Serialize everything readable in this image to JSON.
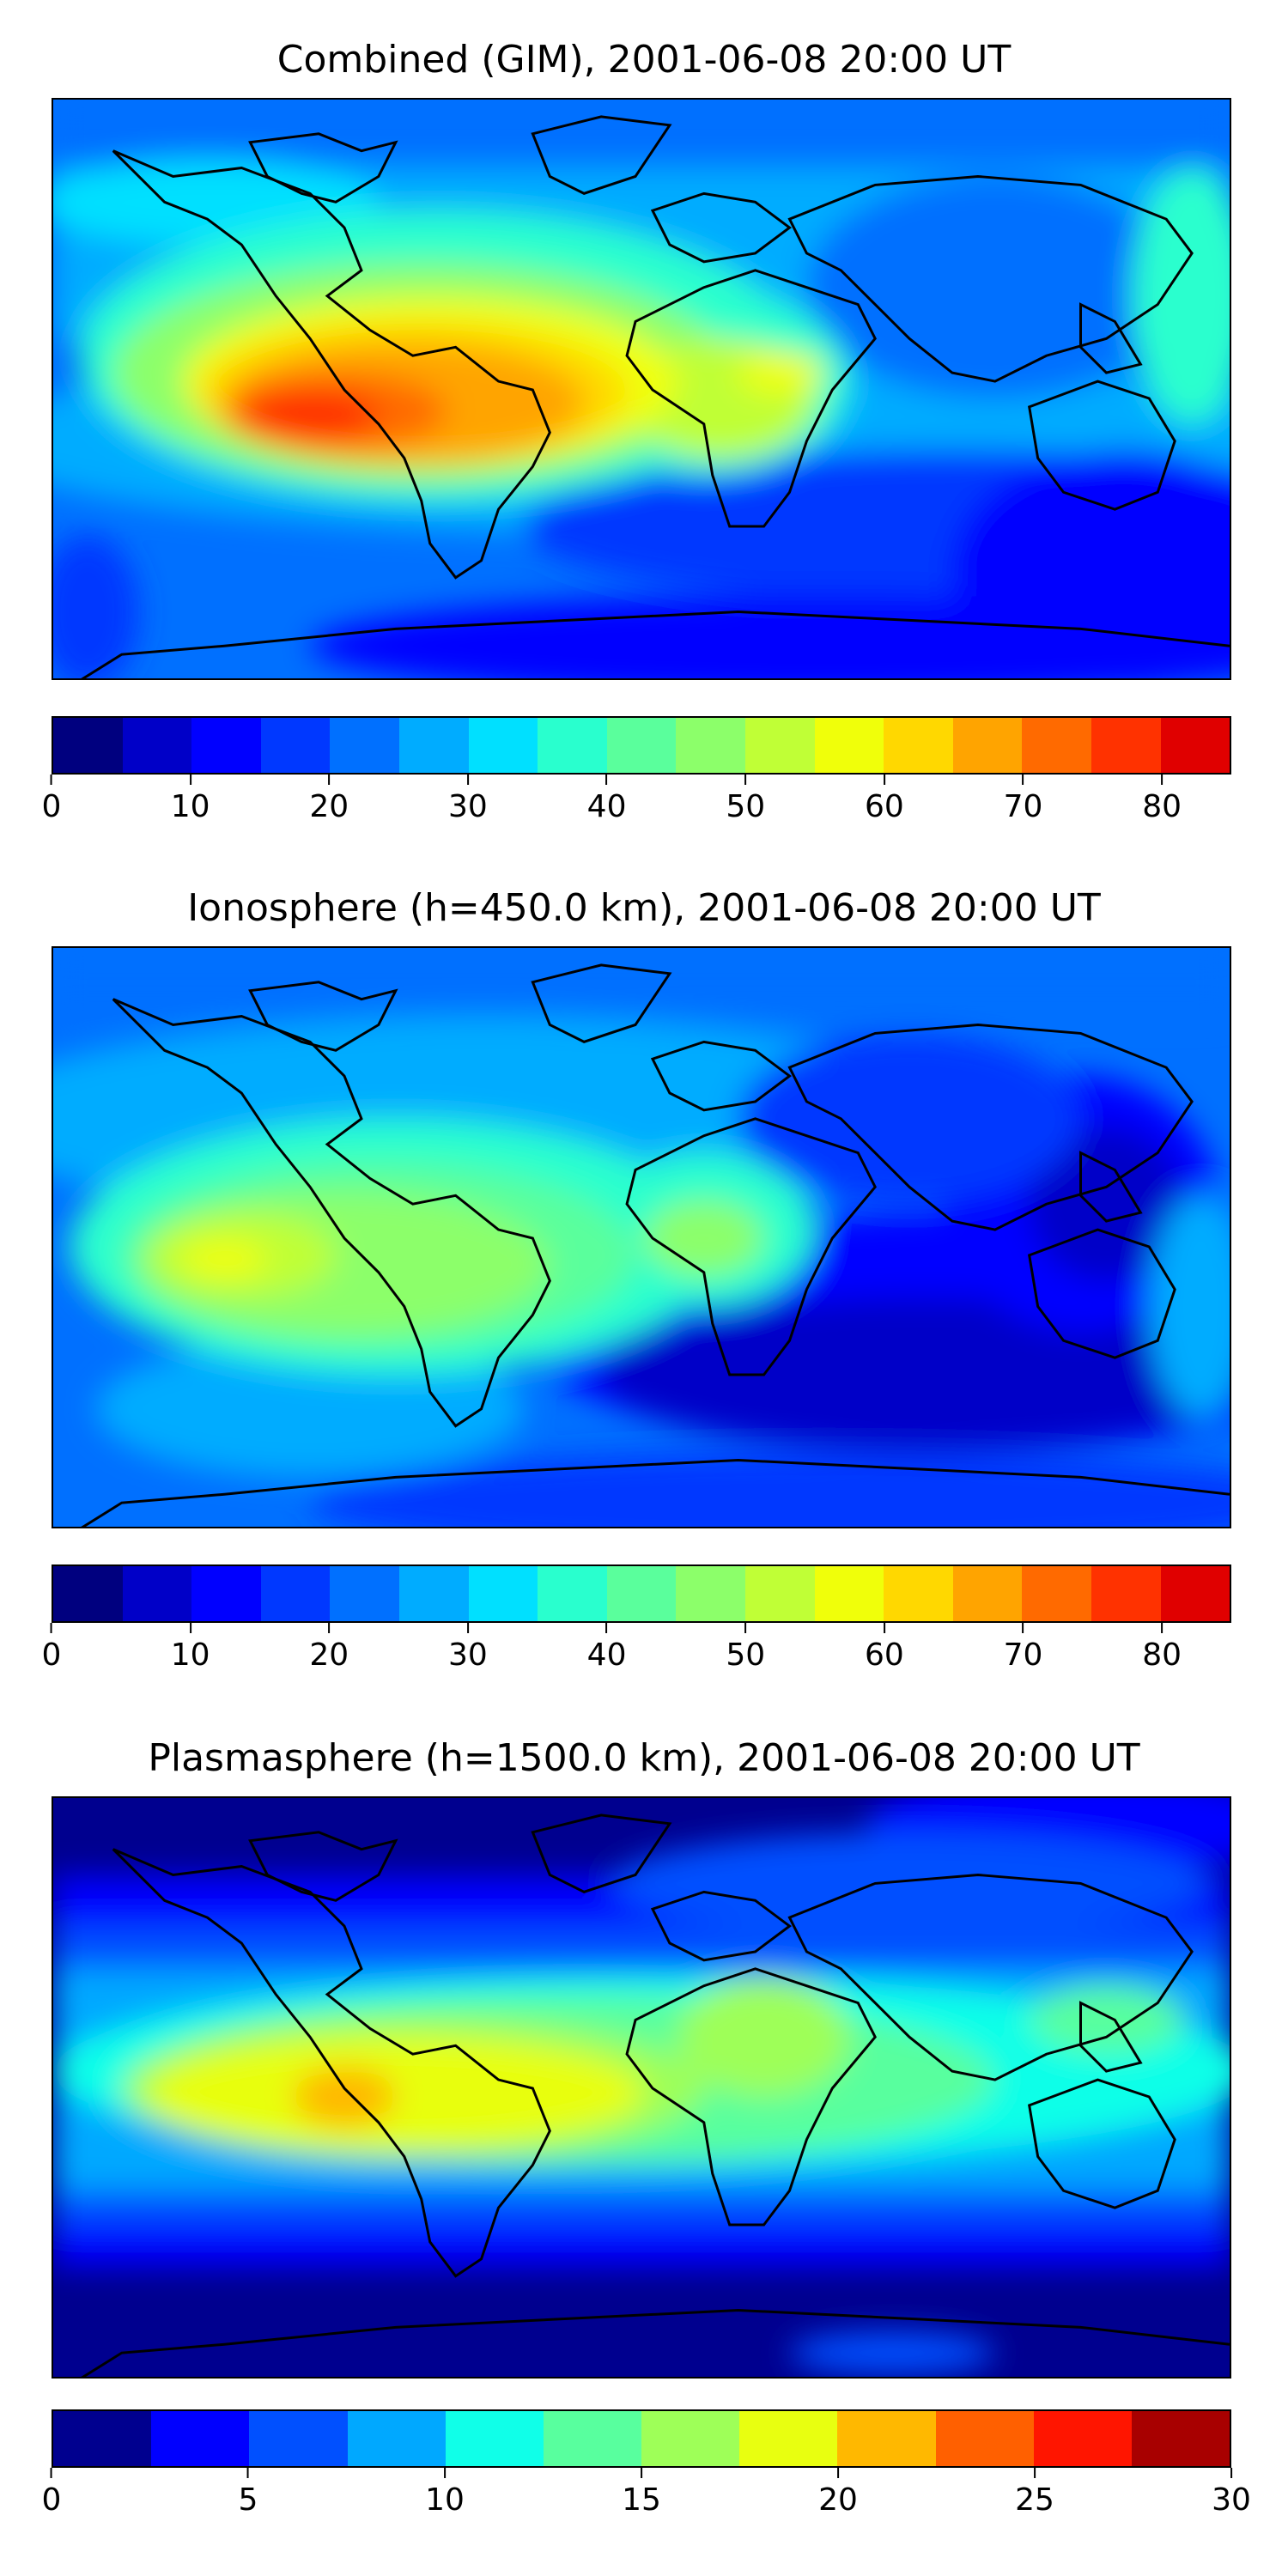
{
  "maps": [
    {
      "title": "Combined (GIM), 2001-06-08 20:00 UT",
      "colorbar": {
        "min": 0,
        "max": 85,
        "step": 5,
        "colors": [
          "#00007f",
          "#0000c8",
          "#0000ff",
          "#0038ff",
          "#0070ff",
          "#00acff",
          "#00e0ff",
          "#29ffce",
          "#5aff9c",
          "#8cff6a",
          "#c0ff36",
          "#f0ff0a",
          "#ffd800",
          "#ffa400",
          "#ff6a00",
          "#ff3200",
          "#e00000",
          "#a00000"
        ],
        "tick_labels": [
          "0",
          "10",
          "20",
          "30",
          "40",
          "50",
          "60",
          "70",
          "80"
        ],
        "tick_values": [
          0,
          10,
          20,
          30,
          40,
          50,
          60,
          70,
          80
        ]
      },
      "features": {
        "peak_value_approx": 75,
        "peak_location": "eastern Pacific / South America, low northern latitudes",
        "min_region": "southern oceans and Antarctic edge",
        "background_level": 15
      }
    },
    {
      "title": "Ionosphere  (h=450.0 km), 2001-06-08 20:00 UT",
      "colorbar": {
        "min": 0,
        "max": 85,
        "step": 5,
        "colors": [
          "#00007f",
          "#0000c8",
          "#0000ff",
          "#0038ff",
          "#0070ff",
          "#00acff",
          "#00e0ff",
          "#29ffce",
          "#5aff9c",
          "#8cff6a",
          "#c0ff36",
          "#f0ff0a",
          "#ffd800",
          "#ffa400",
          "#ff6a00",
          "#ff3200",
          "#e00000",
          "#a00000"
        ],
        "tick_labels": [
          "0",
          "10",
          "20",
          "30",
          "40",
          "50",
          "60",
          "70",
          "80"
        ],
        "tick_values": [
          0,
          10,
          20,
          30,
          40,
          50,
          60,
          70,
          80
        ]
      },
      "features": {
        "peak_value_approx": 55,
        "peak_location": "eastern Pacific west of South America",
        "min_region": "South Atlantic / Indian Ocean and western Pacific",
        "background_level": 15
      }
    },
    {
      "title": "Plasmasphere (h=1500.0 km), 2001-06-08 20:00 UT",
      "colorbar": {
        "min": 0,
        "max": 30,
        "step": 2.5,
        "colors": [
          "#00008f",
          "#0000ff",
          "#0050ff",
          "#00a8ff",
          "#10ffe8",
          "#58ff9e",
          "#9eff58",
          "#e8ff10",
          "#ffb800",
          "#ff6000",
          "#ff1500",
          "#a80000"
        ],
        "tick_labels": [
          "0",
          "5",
          "10",
          "15",
          "20",
          "25",
          "30"
        ],
        "tick_values": [
          0,
          5,
          10,
          15,
          20,
          25,
          30
        ]
      },
      "features": {
        "peak_value_approx": 21,
        "peak_location": "eastern Pacific west of South America",
        "min_region": "high northern and southern latitudes",
        "background_level": 5
      }
    }
  ]
}
